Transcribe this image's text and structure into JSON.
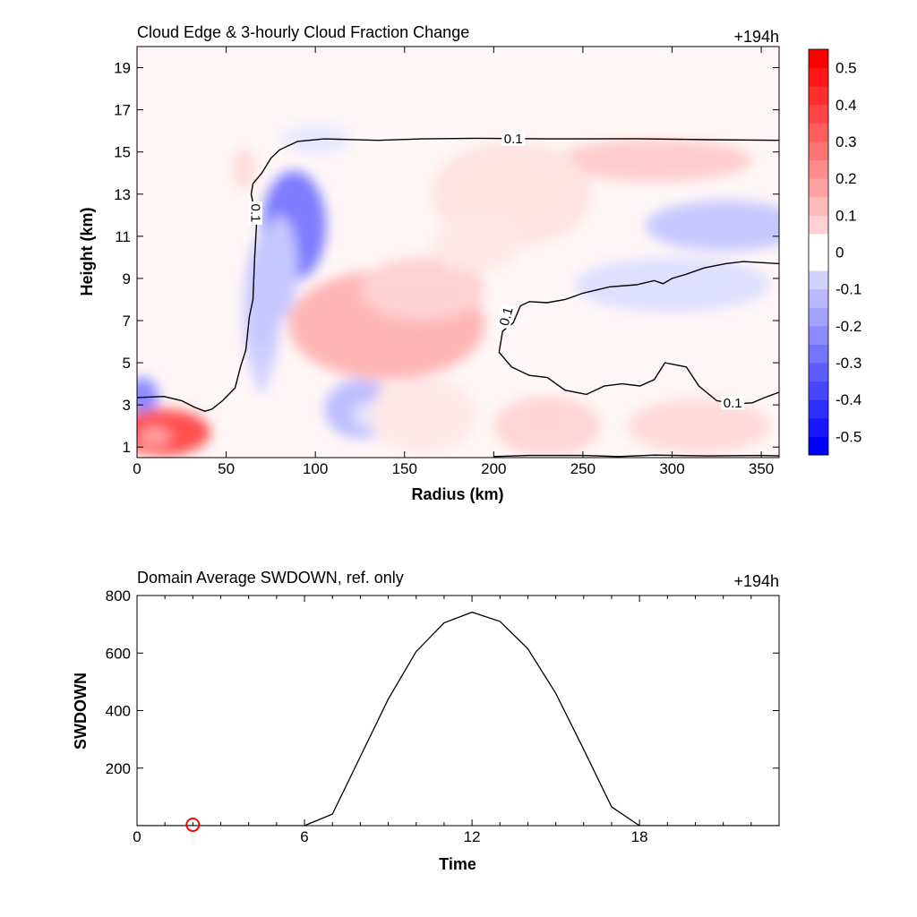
{
  "chart_data": [
    {
      "type": "heatmap",
      "title": "Cloud Edge & 3-hourly Cloud Fraction Change",
      "time_label": "+194h",
      "xlabel": "Radius (km)",
      "ylabel": "Height (km)",
      "xlim": [
        0,
        360
      ],
      "ylim": [
        0.5,
        20
      ],
      "xticks": [
        "0",
        "50",
        "100",
        "150",
        "200",
        "250",
        "300",
        "350"
      ],
      "yticks": [
        "1",
        "3",
        "5",
        "7",
        "9",
        "11",
        "13",
        "15",
        "17",
        "19"
      ],
      "colorbar": {
        "range": [
          -0.55,
          0.55
        ],
        "ticks": [
          "0.5",
          "0.4",
          "0.3",
          "0.2",
          "0.1",
          "0",
          "-0.1",
          "-0.2",
          "-0.3",
          "-0.4",
          "-0.5"
        ],
        "negative_color": "#0000ff",
        "positive_color": "#ff0000"
      },
      "contour_level": "0.1",
      "contour_labels": [
        "0.1",
        "0.1",
        "0.1",
        "0.1"
      ],
      "anomalies": [
        {
          "x": 88,
          "y": 11.5,
          "rx": 18,
          "ry": 2.6,
          "v": -0.28
        },
        {
          "x": 80,
          "y": 9.5,
          "rx": 10,
          "ry": 2.5,
          "v": -0.12
        },
        {
          "x": 70,
          "y": 7.5,
          "rx": 10,
          "ry": 3.5,
          "v": -0.12
        },
        {
          "x": 70,
          "y": 4.8,
          "rx": 5,
          "ry": 1.2,
          "v": -0.1
        },
        {
          "x": 125,
          "y": 2.8,
          "rx": 20,
          "ry": 1.4,
          "v": -0.14
        },
        {
          "x": 127,
          "y": 2.5,
          "rx": 6,
          "ry": 0.6,
          "v": -0.06
        },
        {
          "x": 3,
          "y": 3.4,
          "rx": 9,
          "ry": 0.9,
          "v": -0.25
        },
        {
          "x": 140,
          "y": 6.8,
          "rx": 55,
          "ry": 2.6,
          "v": 0.16
        },
        {
          "x": 160,
          "y": 8.5,
          "rx": 35,
          "ry": 1.5,
          "v": 0.1
        },
        {
          "x": 15,
          "y": 1.7,
          "rx": 26,
          "ry": 1.1,
          "v": 0.38
        },
        {
          "x": 10,
          "y": 1.5,
          "rx": 9,
          "ry": 0.45,
          "v": 0.2
        },
        {
          "x": 290,
          "y": 14.6,
          "rx": 55,
          "ry": 1.0,
          "v": 0.11
        },
        {
          "x": 210,
          "y": 13.0,
          "rx": 45,
          "ry": 2.5,
          "v": 0.06
        },
        {
          "x": 190,
          "y": 10.6,
          "rx": 25,
          "ry": 1.3,
          "v": 0.05
        },
        {
          "x": 330,
          "y": 11.5,
          "rx": 45,
          "ry": 1.2,
          "v": -0.12
        },
        {
          "x": 300,
          "y": 8.7,
          "rx": 55,
          "ry": 1.3,
          "v": -0.07
        },
        {
          "x": 230,
          "y": 2.0,
          "rx": 30,
          "ry": 1.4,
          "v": 0.09
        },
        {
          "x": 315,
          "y": 2.0,
          "rx": 40,
          "ry": 1.3,
          "v": 0.08
        },
        {
          "x": 160,
          "y": 2.5,
          "rx": 30,
          "ry": 1.8,
          "v": 0.05
        },
        {
          "x": 60,
          "y": 14.2,
          "rx": 6,
          "ry": 1.0,
          "v": 0.08
        },
        {
          "x": 100,
          "y": 15.6,
          "rx": 20,
          "ry": 0.7,
          "v": -0.05
        }
      ],
      "contours": [
        [
          [
            0,
            3.35
          ],
          [
            15,
            3.4
          ],
          [
            25,
            3.2
          ],
          [
            32,
            2.9
          ],
          [
            38,
            2.7
          ],
          [
            42,
            2.8
          ],
          [
            48,
            3.2
          ],
          [
            55,
            3.8
          ],
          [
            58,
            4.8
          ],
          [
            61,
            5.6
          ],
          [
            63,
            7.2
          ],
          [
            65,
            8.0
          ],
          [
            66,
            10.0
          ],
          [
            67,
            11.5
          ],
          [
            66,
            12.2
          ],
          [
            64,
            13.0
          ],
          [
            65,
            13.5
          ],
          [
            70,
            14.0
          ],
          [
            75,
            14.7
          ],
          [
            80,
            15.1
          ],
          [
            90,
            15.5
          ],
          [
            105,
            15.62
          ],
          [
            135,
            15.55
          ],
          [
            160,
            15.62
          ],
          [
            190,
            15.65
          ],
          [
            230,
            15.62
          ],
          [
            280,
            15.63
          ],
          [
            320,
            15.58
          ],
          [
            360,
            15.55
          ]
        ],
        [
          [
            360,
            9.7
          ],
          [
            340,
            9.8
          ],
          [
            330,
            9.7
          ],
          [
            318,
            9.5
          ],
          [
            308,
            9.2
          ],
          [
            300,
            9.0
          ],
          [
            295,
            8.75
          ],
          [
            290,
            8.9
          ],
          [
            280,
            8.7
          ],
          [
            265,
            8.6
          ],
          [
            250,
            8.3
          ],
          [
            240,
            8.0
          ],
          [
            230,
            7.85
          ],
          [
            220,
            7.9
          ],
          [
            215,
            7.7
          ],
          [
            211,
            6.9
          ],
          [
            205,
            6.5
          ],
          [
            203,
            5.5
          ],
          [
            210,
            4.8
          ],
          [
            220,
            4.4
          ],
          [
            230,
            4.3
          ],
          [
            240,
            3.7
          ],
          [
            252,
            3.5
          ],
          [
            262,
            3.9
          ],
          [
            272,
            4.0
          ],
          [
            282,
            3.9
          ],
          [
            290,
            4.2
          ],
          [
            296,
            5.0
          ],
          [
            302,
            4.9
          ],
          [
            308,
            4.8
          ],
          [
            315,
            3.9
          ],
          [
            325,
            3.2
          ],
          [
            335,
            3.05
          ],
          [
            345,
            3.1
          ],
          [
            352,
            3.35
          ],
          [
            360,
            3.6
          ]
        ],
        [
          [
            200,
            0.55
          ],
          [
            220,
            0.6
          ],
          [
            250,
            0.6
          ],
          [
            270,
            0.55
          ],
          [
            290,
            0.62
          ],
          [
            320,
            0.58
          ],
          [
            350,
            0.6
          ],
          [
            360,
            0.58
          ]
        ]
      ]
    },
    {
      "type": "line",
      "title": "Domain Average SWDOWN, ref. only",
      "time_label": "+194h",
      "xlabel": "Time",
      "ylabel": "SWDOWN",
      "xlim": [
        0,
        23
      ],
      "ylim": [
        0,
        800
      ],
      "xticks": [
        "0",
        "6",
        "12",
        "18"
      ],
      "yticks": [
        "200",
        "400",
        "600",
        "800"
      ],
      "x": [
        0,
        1,
        2,
        3,
        4,
        5,
        6,
        7,
        8,
        9,
        10,
        11,
        12,
        13,
        14,
        15,
        16,
        17,
        18,
        19,
        20,
        21,
        22,
        23
      ],
      "values": [
        0,
        0,
        0,
        0,
        0,
        0,
        0,
        40,
        240,
        440,
        605,
        705,
        742,
        710,
        615,
        460,
        265,
        65,
        0,
        0,
        0,
        0,
        0,
        0
      ],
      "marker": {
        "x": 2,
        "y": 0,
        "color": "#ff0000"
      }
    }
  ]
}
